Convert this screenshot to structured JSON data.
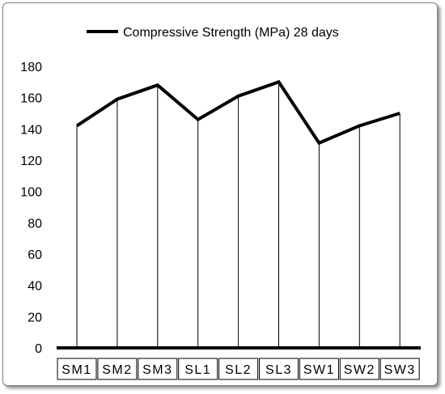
{
  "chart_data": {
    "type": "line",
    "categories": [
      "SM1",
      "SM2",
      "SM3",
      "SL1",
      "SL2",
      "SL3",
      "SW1",
      "SW2",
      "SW3"
    ],
    "series": [
      {
        "name": "Compressive Strength (MPa) 28 days",
        "values": [
          142,
          159,
          168,
          146,
          161,
          170,
          131,
          142,
          150
        ],
        "color": "#000000"
      }
    ],
    "title": "",
    "xlabel": "",
    "ylabel": "",
    "ylim": [
      0,
      180
    ],
    "yticks": [
      "0",
      "20",
      "40",
      "60",
      "80",
      "100",
      "120",
      "140",
      "160",
      "180"
    ],
    "grid": false,
    "drop_lines": true,
    "legend_position": "top"
  }
}
